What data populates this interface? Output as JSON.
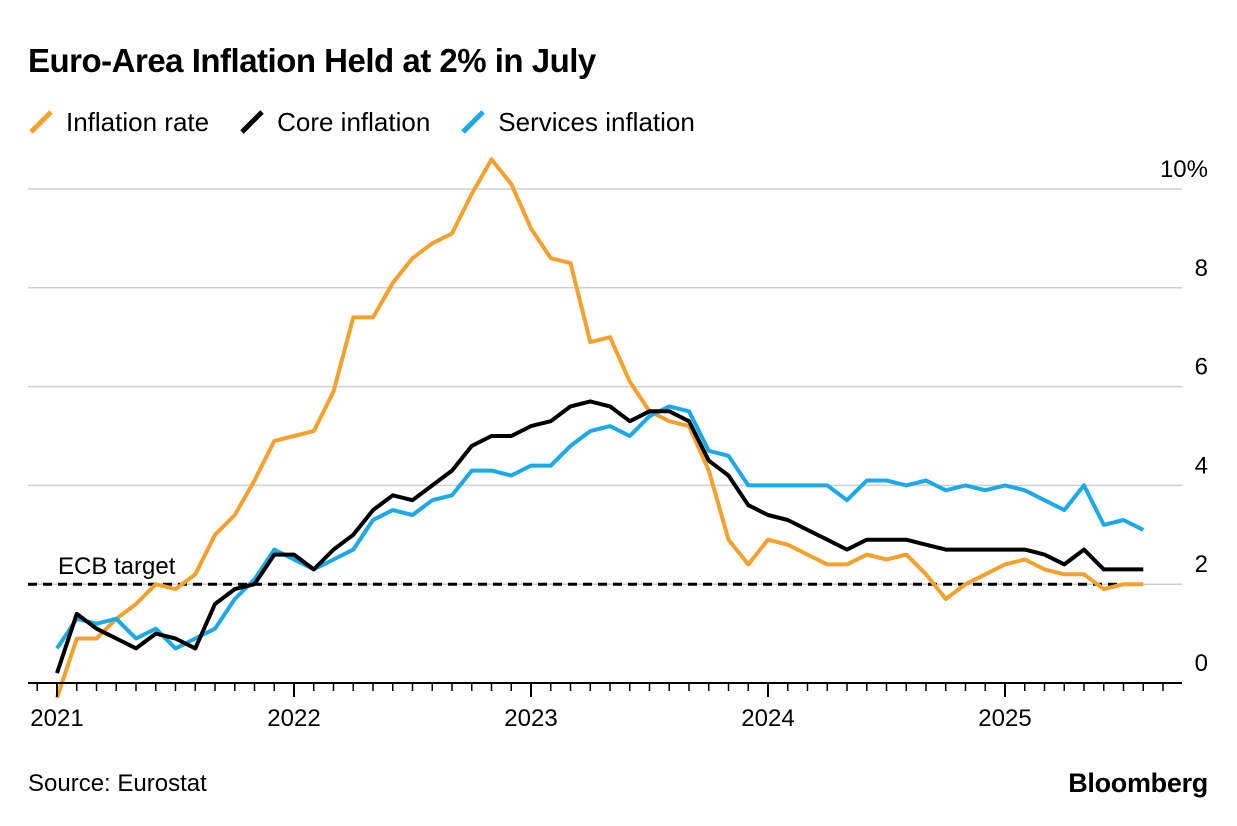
{
  "chart_data": {
    "type": "line",
    "title": "Euro-Area Inflation Held at 2% in July",
    "source": "Source: Eurostat",
    "brand": "Bloomberg",
    "x_start": "2021-01",
    "x_tick_labels": [
      "2021",
      "2022",
      "2023",
      "2024",
      "2025"
    ],
    "y_tick_labels": [
      "10%",
      "8",
      "6",
      "4",
      "2",
      "0"
    ],
    "y_ticks": [
      10,
      8,
      6,
      4,
      2,
      0
    ],
    "ylim": [
      -0.5,
      10.5
    ],
    "legend_position": "top-left",
    "grid": true,
    "annotation": {
      "label": "ECB target",
      "value": 2
    },
    "series": [
      {
        "name": "Inflation rate",
        "color": "#f6a02d",
        "values": [
          -0.3,
          0.9,
          0.9,
          1.3,
          1.6,
          2.0,
          1.9,
          2.2,
          3.0,
          3.4,
          4.1,
          4.9,
          5.0,
          5.1,
          5.9,
          7.4,
          7.4,
          8.1,
          8.6,
          8.9,
          9.1,
          9.9,
          10.6,
          10.1,
          9.2,
          8.6,
          8.5,
          6.9,
          7.0,
          6.1,
          5.5,
          5.3,
          5.2,
          4.3,
          2.9,
          2.4,
          2.9,
          2.8,
          2.6,
          2.4,
          2.4,
          2.6,
          2.5,
          2.6,
          2.2,
          1.7,
          2.0,
          2.2,
          2.4,
          2.5,
          2.3,
          2.2,
          2.2,
          1.9,
          2.0,
          2.0
        ]
      },
      {
        "name": "Core inflation",
        "color": "#000000",
        "values": [
          0.2,
          1.4,
          1.1,
          0.9,
          0.7,
          1.0,
          0.9,
          0.7,
          1.6,
          1.9,
          2.0,
          2.6,
          2.6,
          2.3,
          2.7,
          3.0,
          3.5,
          3.8,
          3.7,
          4.0,
          4.3,
          4.8,
          5.0,
          5.0,
          5.2,
          5.3,
          5.6,
          5.7,
          5.6,
          5.3,
          5.5,
          5.5,
          5.3,
          4.5,
          4.2,
          3.6,
          3.4,
          3.3,
          3.1,
          2.9,
          2.7,
          2.9,
          2.9,
          2.9,
          2.8,
          2.7,
          2.7,
          2.7,
          2.7,
          2.7,
          2.6,
          2.4,
          2.7,
          2.3,
          2.3,
          2.3
        ]
      },
      {
        "name": "Services inflation",
        "color": "#1ba9ea",
        "values": [
          0.7,
          1.3,
          1.2,
          1.3,
          0.9,
          1.1,
          0.7,
          0.9,
          1.1,
          1.7,
          2.1,
          2.7,
          2.5,
          2.3,
          2.5,
          2.7,
          3.3,
          3.5,
          3.4,
          3.7,
          3.8,
          4.3,
          4.3,
          4.2,
          4.4,
          4.4,
          4.8,
          5.1,
          5.2,
          5.0,
          5.4,
          5.6,
          5.5,
          4.7,
          4.6,
          4.0,
          4.0,
          4.0,
          4.0,
          4.0,
          3.7,
          4.1,
          4.1,
          4.0,
          4.1,
          3.9,
          4.0,
          3.9,
          4.0,
          3.9,
          3.7,
          3.5,
          4.0,
          3.2,
          3.3,
          3.1
        ]
      }
    ]
  }
}
